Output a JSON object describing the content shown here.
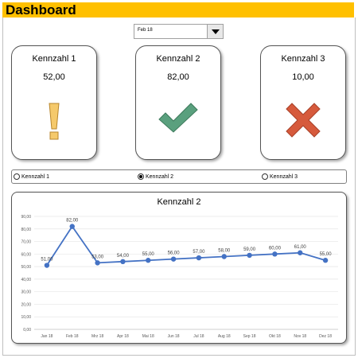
{
  "header": {
    "title": "Dashboard"
  },
  "month_select": {
    "value": "Feb 18"
  },
  "cards": [
    {
      "label": "Kennzahl  1",
      "value": "52,00",
      "icon": "exclamation-icon",
      "color": "#e8b84a"
    },
    {
      "label": "Kennzahl  2",
      "value": "82,00",
      "icon": "check-icon",
      "color": "#5aa07e"
    },
    {
      "label": "Kennzahl  3",
      "value": "10,00",
      "icon": "cross-icon",
      "color": "#d65a3c"
    }
  ],
  "radios": [
    {
      "label": "Kennzahl 1",
      "selected": false
    },
    {
      "label": "Kennzahl 2",
      "selected": true
    },
    {
      "label": "Kennzahl 3",
      "selected": false
    }
  ],
  "chart_data": {
    "type": "line",
    "title": "Kennzahl  2",
    "categories": [
      "Jan 18",
      "Feb 18",
      "Mrz 18",
      "Apr 18",
      "Mai 18",
      "Jun 18",
      "Jul 18",
      "Aug 18",
      "Sep 18",
      "Okt 18",
      "Nov 18",
      "Dez 18"
    ],
    "series": [
      {
        "values": [
          51,
          82,
          53,
          54,
          55,
          56,
          57,
          58,
          59,
          60,
          61,
          55
        ]
      }
    ],
    "data_labels": [
      "51,00",
      "82,00",
      "53,00",
      "54,00",
      "55,00",
      "56,00",
      "57,00",
      "58,00",
      "59,00",
      "60,00",
      "61,00",
      "55,00"
    ],
    "y_ticks": [
      "0,00",
      "10,00",
      "20,00",
      "30,00",
      "40,00",
      "50,00",
      "60,00",
      "70,00",
      "80,00",
      "90,00"
    ],
    "ylim": [
      0,
      90
    ],
    "grid": true,
    "line_color": "#4472c4"
  }
}
